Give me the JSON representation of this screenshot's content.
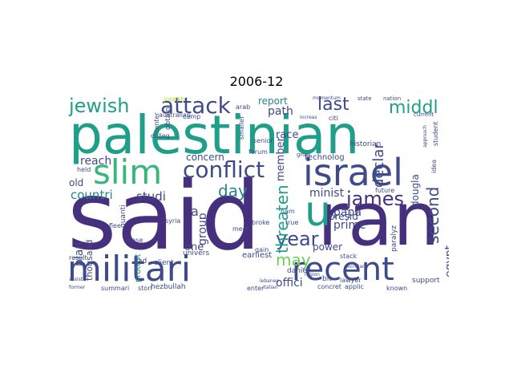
{
  "title": "2006-12",
  "colors": {
    "dark_purple": "#462f7c",
    "purple": "#3e4a89",
    "blue": "#31688e",
    "teal": "#26828e",
    "green_teal": "#1f9e89",
    "green": "#35b779",
    "light_green": "#6ece58",
    "yellow": "#b5de2b"
  },
  "words": {
    "palestinian": "palestinian",
    "said": "said",
    "ran": "ran",
    "militari": "militari",
    "israel": "israel",
    "recent": "recent",
    "slim": "slim",
    "u": "u",
    "conflict": "conflict",
    "attack": "attack",
    "jewish": "jewish",
    "james": "james",
    "last": "last",
    "middl": "middl",
    "second": "second",
    "year": "year",
    "may": "may",
    "day": "day",
    "threaten": "threaten",
    "countri": "countri",
    "studi": "studi",
    "group": "group",
    "egypt": "egypt",
    "declar": "declar",
    "report": "report",
    "path": "path",
    "race": "race",
    "member": "member",
    "minist": "minist",
    "concern": "concern",
    "reach": "reach",
    "old": "old",
    "one": "one",
    "papa": "papa",
    "prime": "prime",
    "presid": "presid",
    "power": "power",
    "offici": "offici",
    "plan": "plan",
    "thousand": "thousand",
    "douglas": "dougla",
    "historian": "historian",
    "technolog": "technolog",
    "earliest": "earliest",
    "daniell": "daniell",
    "hezbullah": "hezbullah",
    "support": "support",
    "known": "known",
    "summari": "summari",
    "client": "client",
    "univers": "univers",
    "lawyer": "lawyer",
    "australian": "australian",
    "joseph": "joseph",
    "stack": "stack",
    "concret": "concret",
    "applic": "applic",
    "enter": "enter",
    "stori": "stori",
    "result": "result",
    "protest": "protest",
    "quanti": "quanti",
    "held": "held",
    "case": "case",
    "forum": "forum",
    "senior": "senior",
    "smaller": "smaller",
    "colleg": "colleg",
    "camp": "camp",
    "center": "center",
    "obtain": "obtain",
    "student": "student",
    "future": "future",
    "idea": "idea",
    "citi": "citi",
    "true": "true",
    "gain": "gain",
    "nam": "nam",
    "meet": "meet",
    "syria": "syria",
    "flee": "flee",
    "broke": "broke",
    "arab": "arab",
    "state": "state",
    "nation": "nation",
    "momentum": "momentum",
    "current": "current",
    "approach": "approach",
    "paralyz": "paralyz",
    "assist": "assist",
    "former": "former",
    "ad": "ad",
    "a": "a",
    "italian": "italian",
    "bit": "bit",
    "region": "region",
    "increas": "increas",
    "grow": "grow",
    "secretari": "secretari",
    "lebanes": "lebanes"
  }
}
